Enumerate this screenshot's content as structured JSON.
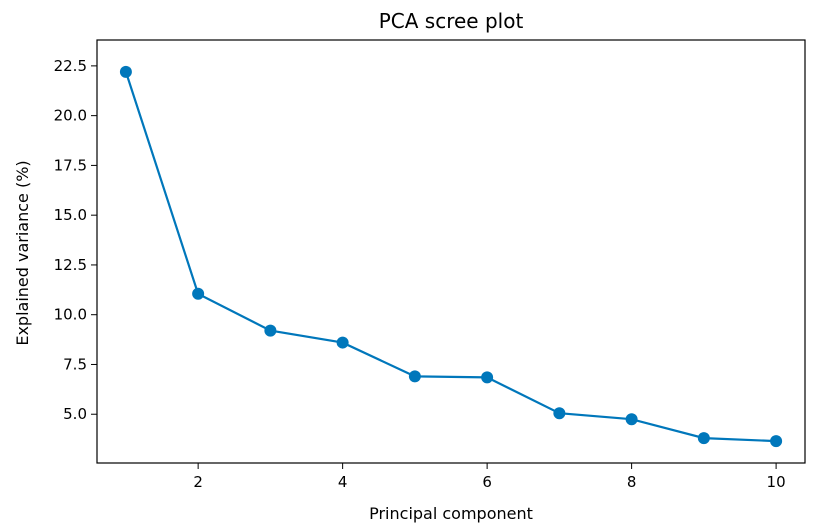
{
  "chart_data": {
    "type": "line",
    "title": "PCA scree plot",
    "xlabel": "Principal component",
    "ylabel": "Explained variance (%)",
    "x": [
      1,
      2,
      3,
      4,
      5,
      6,
      7,
      8,
      9,
      10
    ],
    "series": [
      {
        "values": [
          22.2,
          11.05,
          9.2,
          8.6,
          6.9,
          6.85,
          5.05,
          4.75,
          3.8,
          3.65
        ],
        "color": "#0077bb"
      }
    ],
    "xlim": [
      0.6,
      10.4
    ],
    "ylim": [
      2.55,
      23.8
    ],
    "xticks": [
      2,
      4,
      6,
      8,
      10
    ],
    "xtick_labels": [
      "2",
      "4",
      "6",
      "8",
      "10"
    ],
    "yticks": [
      5.0,
      7.5,
      10.0,
      12.5,
      15.0,
      17.5,
      20.0,
      22.5
    ],
    "ytick_labels": [
      "5.0",
      "7.5",
      "10.0",
      "12.5",
      "15.0",
      "17.5",
      "20.0",
      "22.5"
    ],
    "grid": false,
    "marker": "circle"
  }
}
